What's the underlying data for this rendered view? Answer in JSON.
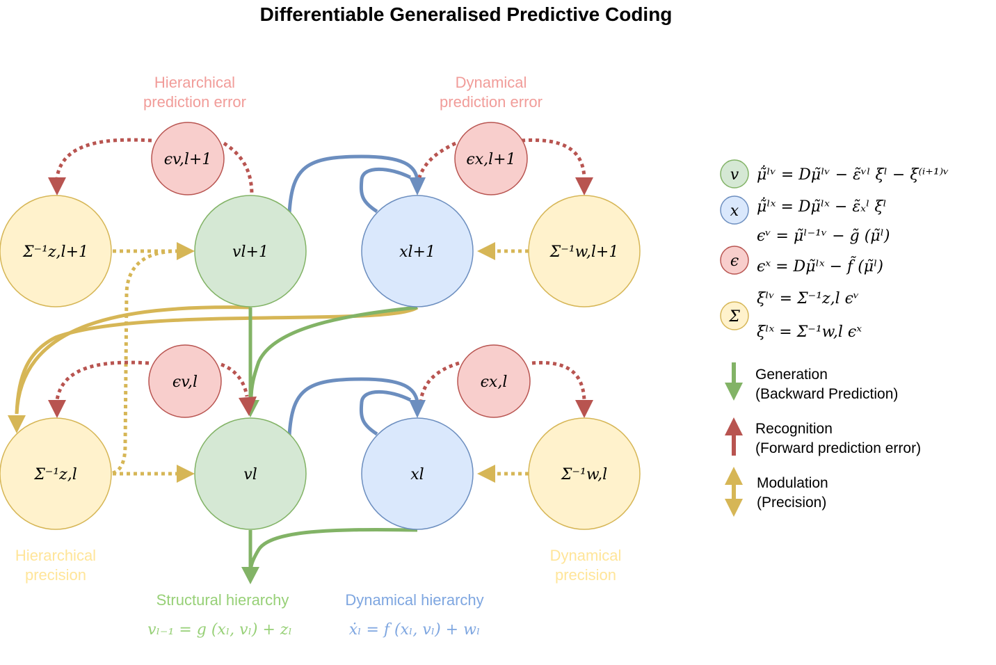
{
  "title": "Differentiable Generalised Predictive Coding",
  "captions": {
    "hier_error": [
      "Hierarchical",
      "prediction error"
    ],
    "dyn_error": [
      "Dynamical",
      "prediction error"
    ],
    "hier_precision": [
      "Hierarchical",
      "precision"
    ],
    "dyn_precision": [
      "Dynamical",
      "precision"
    ],
    "structural": "Structural hierarchy",
    "dynamical": "Dynamical hierarchy",
    "structural_eq": "vₗ₋₁ = g (xₗ, vₗ) + zₗ",
    "dynamical_eq": "ẋₗ = f (xₗ, vₗ) + wₗ"
  },
  "nodes": {
    "eps_v_top": "ϵv,l+1",
    "eps_x_top": "ϵx,l+1",
    "sigma_z_top": "Σ⁻¹z,l+1",
    "v_top": "vl+1",
    "x_top": "xl+1",
    "sigma_w_top": "Σ⁻¹w,l+1",
    "eps_v_bot": "ϵv,l",
    "eps_x_bot": "ϵx,l",
    "sigma_z_bot": "Σ⁻¹z,l",
    "v_bot": "vl",
    "x_bot": "xl",
    "sigma_w_bot": "Σ⁻¹w,l"
  },
  "legend": {
    "symbols": {
      "v": "v",
      "x": "x",
      "eps": "ϵ",
      "sigma": "Σ"
    },
    "equations": [
      "μ̃̇ˡᵛ = Dμ̃ˡᵛ − ε̃ᵛˡ ξˡ − ξ⁽ⁱ⁺¹⁾ᵛ",
      "μ̃̇ˡˣ = Dμ̃ˡˣ − ε̃ₓˡ ξˡ",
      "ϵᵛ = μ̃ˡ⁻¹ᵛ − g̃ (μ̃ˡ)",
      "ϵˣ = Dμ̃ˡˣ − f̃ (μ̃ˡ)",
      "ξˡᵛ = Σ⁻¹z,l ϵᵛ",
      "ξˡˣ = Σ⁻¹w,l ϵˣ"
    ],
    "generation": [
      "Generation",
      "(Backward Prediction)"
    ],
    "recognition": [
      "Recognition",
      "(Forward prediction error)"
    ],
    "modulation": [
      "Modulation",
      "(Precision)"
    ]
  },
  "colors": {
    "green_fill": "#d5e8d4",
    "green_stroke": "#82b366",
    "blue_fill": "#dae8fc",
    "blue_stroke": "#6c8ebf",
    "red_fill": "#f8cecc",
    "red_stroke": "#b85450",
    "yellow_fill": "#fff2cc",
    "yellow_stroke": "#d6b656",
    "green_arrow": "#82b366",
    "blue_arrow": "#6c8ebf",
    "red_arrow": "#b85450",
    "yellow_arrow": "#d6b656",
    "red_caption": "#f19c99",
    "yellow_caption": "#ffe599",
    "green_caption": "#97d077",
    "blue_caption": "#7ea6e0"
  }
}
